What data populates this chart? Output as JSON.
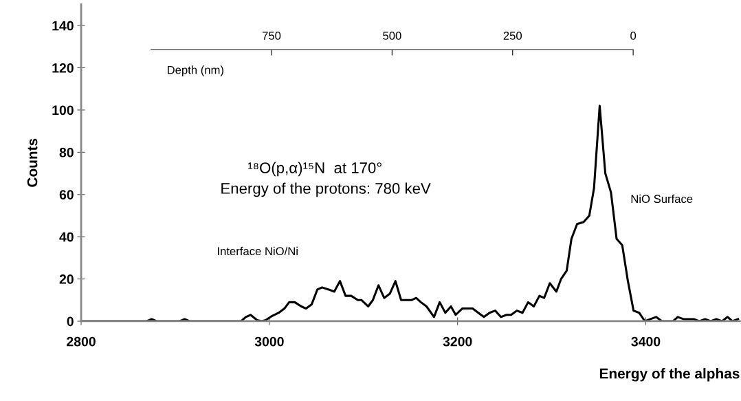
{
  "chart_data": {
    "type": "line",
    "xlabel": "Energy of the alphas",
    "ylabel": "Counts",
    "x": [
      2800,
      2870,
      2875,
      2880,
      2905,
      2910,
      2915,
      2970,
      2975,
      2980,
      2987,
      2992,
      2996,
      3003,
      3010,
      3016,
      3021,
      3027,
      3034,
      3039,
      3045,
      3051,
      3056,
      3063,
      3069,
      3075,
      3081,
      3087,
      3094,
      3098,
      3105,
      3110,
      3116,
      3122,
      3128,
      3134,
      3140,
      3151,
      3156,
      3161,
      3167,
      3175,
      3181,
      3187,
      3193,
      3198,
      3205,
      3216,
      3222,
      3228,
      3234,
      3240,
      3246,
      3252,
      3257,
      3263,
      3269,
      3275,
      3281,
      3287,
      3292,
      3298,
      3305,
      3310,
      3316,
      3321,
      3327,
      3334,
      3340,
      3345,
      3351,
      3357,
      3363,
      3369,
      3375,
      3381,
      3387,
      3393,
      3399,
      3405,
      3411,
      3417,
      3429,
      3434,
      3440,
      3451,
      3457,
      3463,
      3469,
      3475,
      3481,
      3487,
      3492,
      3498
    ],
    "series": [
      {
        "color": "#000000",
        "values": [
          0,
          0,
          1,
          0,
          0,
          1,
          0,
          0,
          2,
          3,
          0.5,
          0,
          0.5,
          2.5,
          4,
          6,
          9,
          9,
          7,
          6,
          8,
          15,
          16,
          15,
          14,
          19,
          12,
          12,
          10,
          10,
          7,
          10,
          17,
          11,
          13,
          19,
          10,
          10,
          11,
          9,
          7,
          2,
          9,
          4,
          7,
          3,
          6,
          6,
          4,
          2,
          4,
          5,
          2,
          3,
          3,
          5,
          4,
          9,
          7,
          12,
          11,
          18,
          14,
          20,
          24,
          39,
          46,
          47,
          50,
          63,
          102,
          70,
          61,
          39,
          36,
          19,
          5,
          4,
          0,
          1,
          2,
          0,
          0,
          2,
          1,
          1,
          0,
          1,
          0,
          1,
          0,
          2,
          0,
          1
        ]
      }
    ],
    "xlim": [
      2800,
      3500
    ],
    "ylim": [
      0,
      150
    ],
    "xticks": [
      2800,
      3000,
      3200,
      3400
    ],
    "yticks": [
      0,
      20,
      40,
      60,
      80,
      100,
      120,
      140
    ],
    "x2lim": [
      1000,
      0
    ],
    "x2ticks": [
      750,
      500,
      250,
      0
    ],
    "x2label": "Depth (nm)",
    "annotations": [
      "¹⁸O(p,α)¹⁵N  at 170°",
      "Energy of the protons: 780 keV",
      "Interface NiO/Ni",
      "NiO Surface"
    ],
    "grid": false,
    "line_style": "solid",
    "marker": "none"
  }
}
